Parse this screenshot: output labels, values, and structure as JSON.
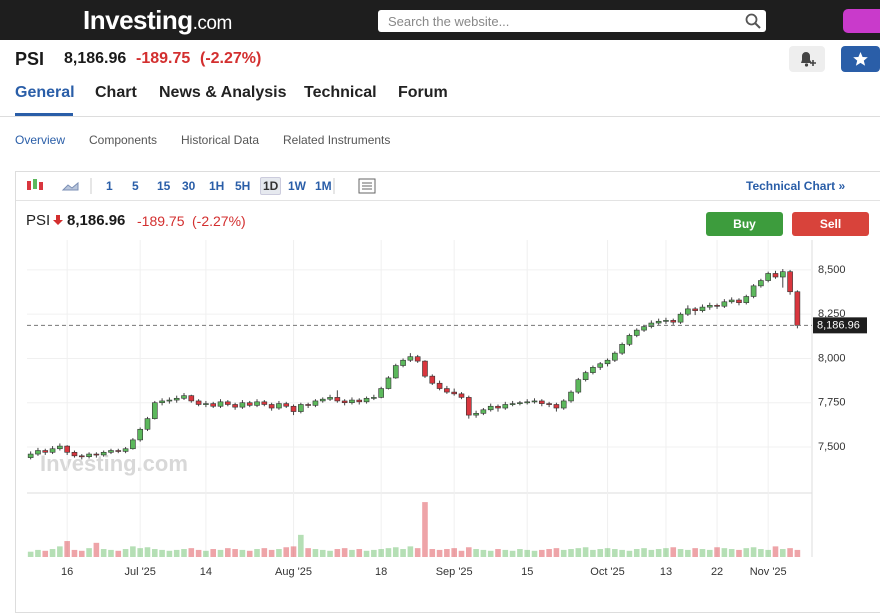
{
  "header": {
    "logo": "Investing",
    "logo_suffix": ".com",
    "search_placeholder": "Search the website..."
  },
  "instrument": {
    "symbol": "PSI",
    "price": "8,186.96",
    "change": "-189.75",
    "change_pct": "(-2.27%)"
  },
  "tabs": [
    "General",
    "Chart",
    "News & Analysis",
    "Technical",
    "Forum"
  ],
  "active_tab": 0,
  "subtabs": [
    "Overview",
    "Components",
    "Historical Data",
    "Related Instruments"
  ],
  "toolbar": {
    "timeframes": [
      "1",
      "5",
      "15",
      "30",
      "1H",
      "5H",
      "1D",
      "1W",
      "1M"
    ],
    "active_timeframe": 6,
    "technical_chart": "Technical Chart »"
  },
  "buttons": {
    "buy": "Buy",
    "sell": "Sell"
  },
  "chart_data": {
    "type": "candlestick",
    "watermark": "Investing.com",
    "up_color": "#5cb85c",
    "down_color": "#d9363e",
    "grid": true,
    "xlim": [
      -0.5,
      107
    ],
    "ylim": [
      7257,
      8669
    ],
    "yticks": [
      {
        "value": 7500,
        "label": "7,500"
      },
      {
        "value": 7750,
        "label": "7,750"
      },
      {
        "value": 8000,
        "label": "8,000"
      },
      {
        "value": 8250,
        "label": "8,250"
      },
      {
        "value": 8500,
        "label": "8,500"
      }
    ],
    "xticks": [
      {
        "value": 5,
        "label": "16"
      },
      {
        "value": 15,
        "label": "Jul '25"
      },
      {
        "value": 24,
        "label": "14"
      },
      {
        "value": 36,
        "label": "Aug '25"
      },
      {
        "value": 48,
        "label": "18"
      },
      {
        "value": 58,
        "label": "Sep '25"
      },
      {
        "value": 68,
        "label": "15"
      },
      {
        "value": 79,
        "label": "Oct '25"
      },
      {
        "value": 87,
        "label": "13"
      },
      {
        "value": 94,
        "label": "22"
      },
      {
        "value": 101,
        "label": "Nov '25"
      }
    ],
    "last_value_label": "8,186.96",
    "volume_ylim": [
      0,
      70
    ],
    "candles": [
      [
        7440,
        7475,
        7430,
        7460
      ],
      [
        7460,
        7495,
        7450,
        7480
      ],
      [
        7480,
        7490,
        7455,
        7470
      ],
      [
        7470,
        7505,
        7460,
        7490
      ],
      [
        7490,
        7520,
        7480,
        7505
      ],
      [
        7505,
        7510,
        7455,
        7470
      ],
      [
        7470,
        7480,
        7440,
        7450
      ],
      [
        7450,
        7460,
        7430,
        7445
      ],
      [
        7445,
        7470,
        7435,
        7460
      ],
      [
        7460,
        7470,
        7440,
        7455
      ],
      [
        7455,
        7480,
        7445,
        7470
      ],
      [
        7470,
        7490,
        7460,
        7480
      ],
      [
        7480,
        7490,
        7465,
        7475
      ],
      [
        7475,
        7500,
        7465,
        7490
      ],
      [
        7490,
        7550,
        7485,
        7540
      ],
      [
        7540,
        7610,
        7530,
        7600
      ],
      [
        7600,
        7670,
        7590,
        7660
      ],
      [
        7660,
        7760,
        7655,
        7750
      ],
      [
        7750,
        7775,
        7735,
        7760
      ],
      [
        7760,
        7780,
        7745,
        7765
      ],
      [
        7765,
        7790,
        7750,
        7775
      ],
      [
        7775,
        7805,
        7765,
        7790
      ],
      [
        7790,
        7795,
        7750,
        7760
      ],
      [
        7760,
        7770,
        7730,
        7740
      ],
      [
        7740,
        7760,
        7725,
        7745
      ],
      [
        7745,
        7755,
        7720,
        7730
      ],
      [
        7730,
        7770,
        7720,
        7755
      ],
      [
        7755,
        7765,
        7730,
        7740
      ],
      [
        7740,
        7750,
        7710,
        7725
      ],
      [
        7725,
        7765,
        7715,
        7750
      ],
      [
        7750,
        7760,
        7725,
        7735
      ],
      [
        7735,
        7770,
        7725,
        7755
      ],
      [
        7755,
        7765,
        7730,
        7740
      ],
      [
        7740,
        7750,
        7705,
        7720
      ],
      [
        7720,
        7760,
        7710,
        7745
      ],
      [
        7745,
        7755,
        7720,
        7730
      ],
      [
        7730,
        7740,
        7680,
        7700
      ],
      [
        7700,
        7750,
        7690,
        7740
      ],
      [
        7740,
        7750,
        7720,
        7735
      ],
      [
        7735,
        7770,
        7725,
        7760
      ],
      [
        7760,
        7780,
        7750,
        7770
      ],
      [
        7770,
        7795,
        7760,
        7780
      ],
      [
        7780,
        7820,
        7750,
        7760
      ],
      [
        7760,
        7770,
        7735,
        7750
      ],
      [
        7750,
        7780,
        7740,
        7765
      ],
      [
        7765,
        7775,
        7740,
        7755
      ],
      [
        7755,
        7785,
        7745,
        7775
      ],
      [
        7775,
        7795,
        7765,
        7780
      ],
      [
        7780,
        7840,
        7775,
        7830
      ],
      [
        7830,
        7900,
        7825,
        7890
      ],
      [
        7890,
        7970,
        7885,
        7960
      ],
      [
        7960,
        8000,
        7950,
        7990
      ],
      [
        7990,
        8030,
        7980,
        8010
      ],
      [
        8010,
        8020,
        7975,
        7985
      ],
      [
        7985,
        7990,
        7890,
        7900
      ],
      [
        7900,
        7910,
        7850,
        7860
      ],
      [
        7860,
        7875,
        7820,
        7830
      ],
      [
        7830,
        7845,
        7800,
        7810
      ],
      [
        7810,
        7830,
        7790,
        7800
      ],
      [
        7800,
        7810,
        7770,
        7780
      ],
      [
        7780,
        7790,
        7660,
        7680
      ],
      [
        7680,
        7705,
        7665,
        7690
      ],
      [
        7690,
        7720,
        7680,
        7710
      ],
      [
        7710,
        7745,
        7700,
        7730
      ],
      [
        7730,
        7740,
        7700,
        7720
      ],
      [
        7720,
        7755,
        7710,
        7740
      ],
      [
        7740,
        7760,
        7730,
        7745
      ],
      [
        7745,
        7760,
        7735,
        7750
      ],
      [
        7750,
        7770,
        7740,
        7755
      ],
      [
        7755,
        7775,
        7745,
        7760
      ],
      [
        7760,
        7770,
        7730,
        7745
      ],
      [
        7745,
        7755,
        7725,
        7740
      ],
      [
        7740,
        7750,
        7700,
        7720
      ],
      [
        7720,
        7770,
        7710,
        7760
      ],
      [
        7760,
        7820,
        7750,
        7810
      ],
      [
        7810,
        7890,
        7800,
        7880
      ],
      [
        7880,
        7930,
        7870,
        7920
      ],
      [
        7920,
        7960,
        7910,
        7950
      ],
      [
        7950,
        7980,
        7935,
        7970
      ],
      [
        7970,
        8000,
        7955,
        7990
      ],
      [
        7990,
        8040,
        7980,
        8030
      ],
      [
        8030,
        8090,
        8020,
        8080
      ],
      [
        8080,
        8140,
        8070,
        8130
      ],
      [
        8130,
        8170,
        8120,
        8160
      ],
      [
        8160,
        8190,
        8150,
        8180
      ],
      [
        8180,
        8215,
        8170,
        8200
      ],
      [
        8200,
        8225,
        8190,
        8210
      ],
      [
        8210,
        8230,
        8195,
        8215
      ],
      [
        8215,
        8225,
        8190,
        8205
      ],
      [
        8205,
        8260,
        8195,
        8250
      ],
      [
        8250,
        8300,
        8240,
        8280
      ],
      [
        8280,
        8290,
        8245,
        8270
      ],
      [
        8270,
        8305,
        8260,
        8290
      ],
      [
        8290,
        8315,
        8275,
        8300
      ],
      [
        8300,
        8310,
        8280,
        8295
      ],
      [
        8295,
        8335,
        8285,
        8320
      ],
      [
        8320,
        8345,
        8310,
        8330
      ],
      [
        8330,
        8340,
        8300,
        8315
      ],
      [
        8315,
        8360,
        8305,
        8350
      ],
      [
        8350,
        8420,
        8340,
        8410
      ],
      [
        8410,
        8450,
        8400,
        8440
      ],
      [
        8440,
        8490,
        8430,
        8480
      ],
      [
        8480,
        8495,
        8450,
        8460
      ],
      [
        8460,
        8505,
        8400,
        8490
      ],
      [
        8490,
        8500,
        8360,
        8376.71
      ],
      [
        8376.71,
        8385,
        8170,
        8186.96
      ]
    ],
    "volume": [
      6,
      8,
      7,
      9,
      12,
      18,
      8,
      7,
      10,
      16,
      9,
      8,
      7,
      9,
      12,
      10,
      11,
      9,
      8,
      7,
      8,
      9,
      10,
      8,
      7,
      9,
      8,
      10,
      9,
      8,
      7,
      9,
      10,
      8,
      9,
      11,
      12,
      25,
      10,
      9,
      8,
      7,
      9,
      10,
      8,
      9,
      7,
      8,
      9,
      10,
      11,
      9,
      12,
      10,
      62,
      9,
      8,
      9,
      10,
      7,
      11,
      9,
      8,
      7,
      9,
      8,
      7,
      9,
      8,
      7,
      8,
      9,
      10,
      8,
      9,
      10,
      11,
      8,
      9,
      10,
      9,
      8,
      7,
      9,
      10,
      8,
      9,
      10,
      11,
      9,
      8,
      10,
      9,
      8,
      11,
      10,
      9,
      8,
      10,
      11,
      9,
      8,
      12,
      9,
      10,
      8
    ]
  }
}
